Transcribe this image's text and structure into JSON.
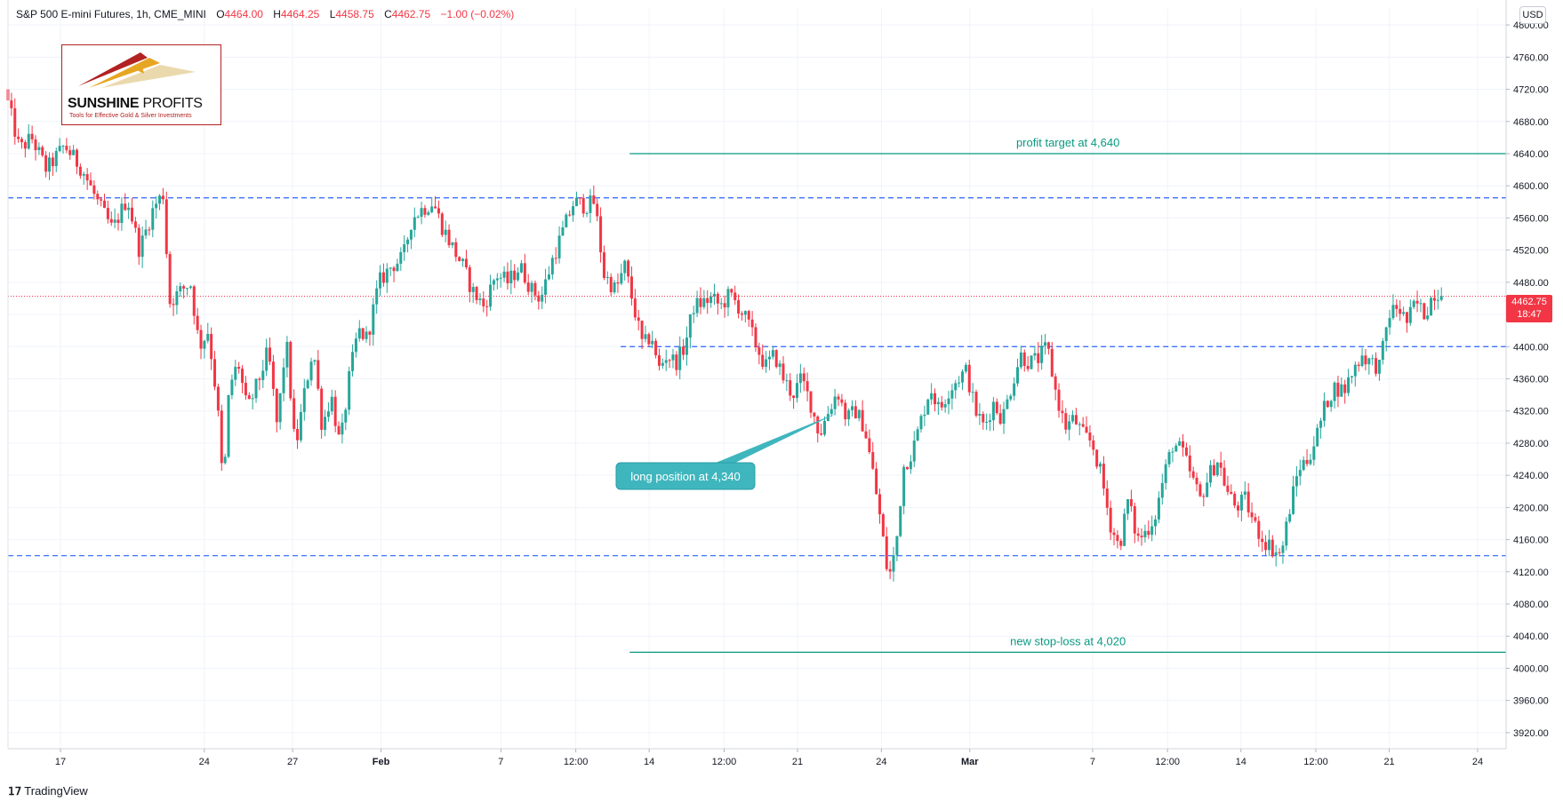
{
  "header": {
    "symbol": "S&P 500 E-mini Futures, 1h, CME_MINI",
    "open_label": "O",
    "open": "4464.00",
    "high_label": "H",
    "high": "4464.25",
    "low_label": "L",
    "low": "4458.75",
    "close_label": "C",
    "close": "4462.75",
    "change": "−1.00 (−0.02%)"
  },
  "logo": {
    "name_bold": "SUNSHINE",
    "name_thin": "PROFITS",
    "tagline": "Tools for Effective Gold & Silver Investments"
  },
  "currency": "USD",
  "last_price": {
    "price": "4462.75",
    "countdown": "18:47"
  },
  "footer": {
    "brand": "TradingView"
  },
  "colors": {
    "up": "#26a69a",
    "down": "#f23645",
    "dashed_level": "#2962ff",
    "target_line": "#089981",
    "callout": "#3fb6be",
    "last_price": "#f23645"
  },
  "chart_data": {
    "type": "candlestick",
    "timeframe": "1h",
    "ylim": [
      3900,
      4820
    ],
    "yticks": [
      3920,
      3960,
      4000,
      4040,
      4080,
      4120,
      4160,
      4200,
      4240,
      4280,
      4320,
      4360,
      4400,
      4440,
      4480,
      4520,
      4560,
      4600,
      4640,
      4680,
      4720,
      4760,
      4800
    ],
    "xticks": [
      {
        "label": "17",
        "pos": 0.035
      },
      {
        "label": "24",
        "pos": 0.131
      },
      {
        "label": "27",
        "pos": 0.19
      },
      {
        "label": "Feb",
        "pos": 0.249
      },
      {
        "label": "7",
        "pos": 0.329
      },
      {
        "label": "12:00",
        "pos": 0.379
      },
      {
        "label": "14",
        "pos": 0.428
      },
      {
        "label": "12:00",
        "pos": 0.478
      },
      {
        "label": "21",
        "pos": 0.527
      },
      {
        "label": "24",
        "pos": 0.583
      },
      {
        "label": "Mar",
        "pos": 0.642
      },
      {
        "label": "7",
        "pos": 0.724
      },
      {
        "label": "12:00",
        "pos": 0.774
      },
      {
        "label": "14",
        "pos": 0.823
      },
      {
        "label": "12:00",
        "pos": 0.873
      },
      {
        "label": "21",
        "pos": 0.922
      },
      {
        "label": "24",
        "pos": 0.981
      }
    ],
    "x_range": [
      0,
      1
    ],
    "path": [
      [
        0.0,
        4720
      ],
      [
        0.01,
        4645
      ],
      [
        0.018,
        4660
      ],
      [
        0.028,
        4620
      ],
      [
        0.04,
        4650
      ],
      [
        0.052,
        4620
      ],
      [
        0.062,
        4580
      ],
      [
        0.072,
        4545
      ],
      [
        0.082,
        4585
      ],
      [
        0.09,
        4520
      ],
      [
        0.1,
        4575
      ],
      [
        0.106,
        4590
      ],
      [
        0.11,
        4455
      ],
      [
        0.118,
        4470
      ],
      [
        0.124,
        4480
      ],
      [
        0.13,
        4400
      ],
      [
        0.136,
        4420
      ],
      [
        0.142,
        4330
      ],
      [
        0.146,
        4220
      ],
      [
        0.15,
        4350
      ],
      [
        0.156,
        4380
      ],
      [
        0.162,
        4320
      ],
      [
        0.17,
        4360
      ],
      [
        0.176,
        4395
      ],
      [
        0.182,
        4300
      ],
      [
        0.188,
        4410
      ],
      [
        0.194,
        4270
      ],
      [
        0.2,
        4340
      ],
      [
        0.206,
        4400
      ],
      [
        0.212,
        4300
      ],
      [
        0.218,
        4340
      ],
      [
        0.224,
        4275
      ],
      [
        0.23,
        4360
      ],
      [
        0.236,
        4420
      ],
      [
        0.242,
        4410
      ],
      [
        0.25,
        4480
      ],
      [
        0.258,
        4500
      ],
      [
        0.266,
        4510
      ],
      [
        0.272,
        4560
      ],
      [
        0.278,
        4570
      ],
      [
        0.286,
        4580
      ],
      [
        0.292,
        4550
      ],
      [
        0.3,
        4520
      ],
      [
        0.306,
        4500
      ],
      [
        0.312,
        4470
      ],
      [
        0.32,
        4450
      ],
      [
        0.328,
        4490
      ],
      [
        0.336,
        4480
      ],
      [
        0.344,
        4500
      ],
      [
        0.352,
        4470
      ],
      [
        0.358,
        4460
      ],
      [
        0.366,
        4510
      ],
      [
        0.374,
        4550
      ],
      [
        0.38,
        4580
      ],
      [
        0.388,
        4575
      ],
      [
        0.394,
        4580
      ],
      [
        0.4,
        4490
      ],
      [
        0.408,
        4470
      ],
      [
        0.414,
        4500
      ],
      [
        0.42,
        4450
      ],
      [
        0.426,
        4400
      ],
      [
        0.432,
        4415
      ],
      [
        0.436,
        4370
      ],
      [
        0.442,
        4390
      ],
      [
        0.448,
        4380
      ],
      [
        0.454,
        4400
      ],
      [
        0.46,
        4450
      ],
      [
        0.466,
        4455
      ],
      [
        0.472,
        4460
      ],
      [
        0.478,
        4450
      ],
      [
        0.484,
        4465
      ],
      [
        0.49,
        4450
      ],
      [
        0.496,
        4430
      ],
      [
        0.502,
        4400
      ],
      [
        0.508,
        4375
      ],
      [
        0.514,
        4390
      ],
      [
        0.52,
        4360
      ],
      [
        0.526,
        4340
      ],
      [
        0.532,
        4360
      ],
      [
        0.538,
        4330
      ],
      [
        0.544,
        4290
      ],
      [
        0.55,
        4320
      ],
      [
        0.556,
        4345
      ],
      [
        0.562,
        4310
      ],
      [
        0.568,
        4320
      ],
      [
        0.574,
        4300
      ],
      [
        0.58,
        4240
      ],
      [
        0.585,
        4180
      ],
      [
        0.59,
        4110
      ],
      [
        0.595,
        4150
      ],
      [
        0.6,
        4250
      ],
      [
        0.606,
        4270
      ],
      [
        0.612,
        4310
      ],
      [
        0.618,
        4350
      ],
      [
        0.624,
        4320
      ],
      [
        0.63,
        4345
      ],
      [
        0.636,
        4360
      ],
      [
        0.642,
        4370
      ],
      [
        0.648,
        4320
      ],
      [
        0.654,
        4300
      ],
      [
        0.66,
        4330
      ],
      [
        0.666,
        4310
      ],
      [
        0.672,
        4350
      ],
      [
        0.678,
        4390
      ],
      [
        0.684,
        4380
      ],
      [
        0.69,
        4385
      ],
      [
        0.696,
        4400
      ],
      [
        0.702,
        4340
      ],
      [
        0.708,
        4300
      ],
      [
        0.714,
        4310
      ],
      [
        0.72,
        4290
      ],
      [
        0.726,
        4280
      ],
      [
        0.732,
        4240
      ],
      [
        0.738,
        4180
      ],
      [
        0.744,
        4150
      ],
      [
        0.75,
        4210
      ],
      [
        0.756,
        4160
      ],
      [
        0.762,
        4170
      ],
      [
        0.768,
        4190
      ],
      [
        0.774,
        4240
      ],
      [
        0.78,
        4280
      ],
      [
        0.786,
        4270
      ],
      [
        0.792,
        4240
      ],
      [
        0.798,
        4210
      ],
      [
        0.804,
        4240
      ],
      [
        0.81,
        4260
      ],
      [
        0.816,
        4220
      ],
      [
        0.822,
        4200
      ],
      [
        0.828,
        4210
      ],
      [
        0.834,
        4180
      ],
      [
        0.84,
        4160
      ],
      [
        0.846,
        4150
      ],
      [
        0.852,
        4140
      ],
      [
        0.858,
        4200
      ],
      [
        0.864,
        4250
      ],
      [
        0.87,
        4260
      ],
      [
        0.876,
        4290
      ],
      [
        0.882,
        4330
      ],
      [
        0.888,
        4350
      ],
      [
        0.894,
        4345
      ],
      [
        0.9,
        4370
      ],
      [
        0.906,
        4390
      ],
      [
        0.912,
        4380
      ],
      [
        0.918,
        4375
      ],
      [
        0.924,
        4440
      ],
      [
        0.93,
        4450
      ],
      [
        0.936,
        4430
      ],
      [
        0.942,
        4455
      ],
      [
        0.948,
        4440
      ],
      [
        0.954,
        4468
      ],
      [
        0.958,
        4462.75
      ]
    ],
    "levels": [
      {
        "name": "resistance-top",
        "value": 4585,
        "style": "dashed",
        "x_start": 0
      },
      {
        "name": "resistance-mid",
        "value": 4400,
        "style": "dashed",
        "x_start": 0.409
      },
      {
        "name": "support-bottom",
        "value": 4140,
        "style": "dashed",
        "x_start": 0
      }
    ],
    "annotations": [
      {
        "label": "profit target at 4,640",
        "value": 4640,
        "x_start": 0.415
      },
      {
        "label": "new stop-loss at 4,020",
        "value": 4020,
        "x_start": 0.415
      },
      {
        "label": "long position at 4,340",
        "value": 4340,
        "x_anchor": 0.554
      }
    ],
    "last_value": 4462.75
  }
}
